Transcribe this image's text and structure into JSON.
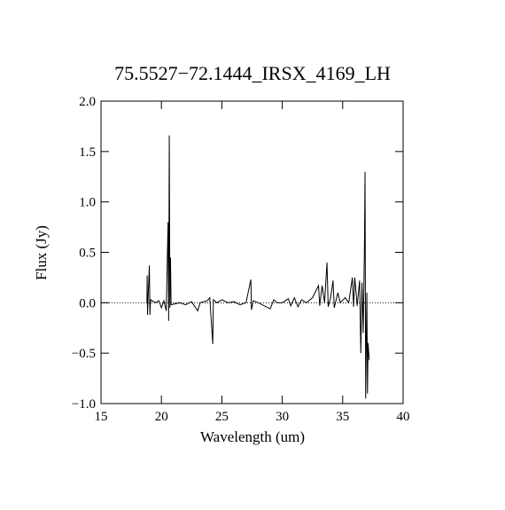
{
  "chart_data": {
    "type": "line",
    "title": "75.5527−72.1444_IRSX_4169_LH",
    "x_label": "Wavelength (um)",
    "y_label": "Flux (Jy)",
    "color": "#000000",
    "zero_line": true,
    "xlim": [
      15,
      40
    ],
    "xticks": [
      15,
      20,
      25,
      30,
      35,
      40
    ],
    "ylim": [
      -1.0,
      2.0
    ],
    "yticks": [
      {
        "value": -1.0,
        "label": "−1.0"
      },
      {
        "value": -0.5,
        "label": "−0.5"
      },
      {
        "value": 0,
        "label": "0.0"
      },
      {
        "value": 0.5,
        "label": "0.5"
      },
      {
        "value": 1.0,
        "label": "1.0"
      },
      {
        "value": 1.5,
        "label": "1.5"
      },
      {
        "value": 2.0,
        "label": "2.0"
      }
    ],
    "x": [
      18.8,
      18.82,
      18.85,
      18.9,
      19.0,
      19.05,
      19.1,
      19.5,
      19.8,
      20.0,
      20.2,
      20.4,
      20.55,
      20.6,
      20.65,
      20.7,
      20.75,
      20.8,
      21.5,
      22.0,
      22.5,
      23.0,
      23.2,
      23.8,
      24.0,
      24.25,
      24.3,
      24.6,
      25.0,
      25.5,
      26.0,
      26.5,
      27.0,
      27.4,
      27.45,
      27.6,
      28.0,
      28.5,
      29.0,
      29.3,
      29.6,
      30.0,
      30.5,
      30.7,
      31.0,
      31.3,
      31.6,
      32.0,
      32.5,
      33.0,
      33.1,
      33.3,
      33.5,
      33.7,
      33.8,
      34.0,
      34.2,
      34.3,
      34.6,
      34.8,
      35.2,
      35.5,
      35.8,
      35.9,
      36.0,
      36.2,
      36.4,
      36.5,
      36.6,
      36.7,
      36.8,
      36.85,
      36.9,
      37.0,
      37.05,
      37.1,
      37.2
    ],
    "values": [
      0.0,
      0.27,
      -0.12,
      0.05,
      0.37,
      -0.12,
      0.03,
      0.0,
      0.02,
      -0.05,
      0.02,
      -0.08,
      0.8,
      -0.18,
      1.66,
      -0.05,
      0.45,
      -0.02,
      0.0,
      -0.02,
      0.01,
      -0.08,
      0.0,
      0.02,
      0.05,
      -0.41,
      0.03,
      0.0,
      0.03,
      0.0,
      0.01,
      -0.02,
      0.0,
      0.23,
      -0.07,
      0.02,
      0.0,
      -0.03,
      -0.06,
      0.03,
      0.0,
      0.0,
      0.04,
      -0.03,
      0.05,
      -0.04,
      0.03,
      0.0,
      0.05,
      0.17,
      -0.03,
      0.17,
      0.0,
      0.4,
      -0.04,
      0.05,
      0.22,
      -0.05,
      0.1,
      0.0,
      0.05,
      0.0,
      0.25,
      -0.04,
      0.25,
      -0.03,
      0.22,
      -0.5,
      0.2,
      -0.3,
      0.55,
      1.3,
      -0.95,
      0.1,
      -0.9,
      -0.4,
      -0.57
    ]
  }
}
